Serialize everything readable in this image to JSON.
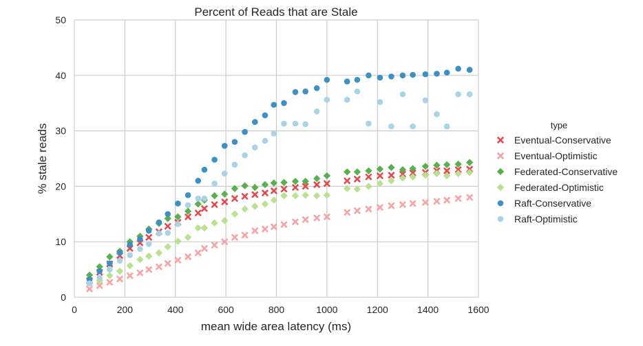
{
  "chart_data": {
    "type": "scatter",
    "title": "Percent of Reads that are Stale",
    "xlabel": "mean wide area latency (ms)",
    "ylabel": "% stale reads",
    "xlim": [
      0,
      1600
    ],
    "ylim": [
      0,
      50
    ],
    "xticks": [
      "0",
      "200",
      "400",
      "600",
      "800",
      "1000",
      "1200",
      "1400",
      "1600"
    ],
    "yticks": [
      "0",
      "10",
      "20",
      "30",
      "40",
      "50"
    ],
    "grid": true,
    "legend_title": "type",
    "legend_position": "right",
    "x": [
      60,
      100,
      140,
      180,
      220,
      260,
      295,
      335,
      370,
      410,
      450,
      490,
      515,
      555,
      595,
      635,
      675,
      715,
      755,
      790,
      830,
      875,
      915,
      960,
      1000,
      1080,
      1120,
      1165,
      1210,
      1255,
      1300,
      1340,
      1390,
      1435,
      1475,
      1520,
      1565
    ],
    "series": [
      {
        "name": "Eventual-Conservative",
        "marker": "x",
        "color": "#e3494e",
        "values": [
          3.0,
          4.5,
          6.0,
          7.5,
          8.8,
          9.8,
          10.8,
          11.8,
          12.8,
          13.5,
          14.5,
          15.2,
          16.0,
          16.7,
          17.2,
          17.8,
          18.2,
          18.5,
          18.8,
          19.2,
          19.5,
          19.8,
          20.0,
          20.3,
          20.5,
          21.0,
          21.3,
          21.7,
          21.9,
          22.0,
          22.2,
          22.4,
          22.5,
          22.8,
          22.8,
          23.0,
          23.1
        ]
      },
      {
        "name": "Eventual-Optimistic",
        "marker": "x",
        "color": "#f8a2a3",
        "values": [
          1.5,
          2.1,
          2.7,
          3.3,
          3.9,
          4.4,
          5.0,
          5.5,
          6.1,
          6.7,
          7.3,
          8.0,
          8.8,
          9.4,
          10.0,
          10.8,
          11.2,
          12.0,
          12.3,
          12.7,
          13.1,
          13.6,
          14.0,
          14.3,
          14.5,
          15.3,
          15.6,
          15.9,
          16.2,
          16.5,
          16.7,
          16.9,
          17.1,
          17.3,
          17.5,
          17.8,
          18.0
        ]
      },
      {
        "name": "Federated-Conservative",
        "marker": "diamond",
        "color": "#5aaf50",
        "values": [
          4.0,
          5.5,
          7.3,
          8.3,
          10.0,
          11.0,
          12.3,
          13.3,
          14.2,
          14.5,
          15.5,
          16.8,
          17.5,
          18.3,
          18.6,
          19.6,
          20.1,
          19.8,
          20.3,
          20.6,
          20.7,
          20.9,
          20.9,
          21.4,
          21.9,
          22.6,
          22.6,
          22.8,
          23.1,
          23.4,
          23.0,
          23.2,
          23.6,
          23.8,
          23.9,
          24.0,
          24.3
        ]
      },
      {
        "name": "Federated-Optimistic",
        "marker": "diamond",
        "color": "#b9e18f",
        "values": [
          2.5,
          3.0,
          3.9,
          4.7,
          5.7,
          6.8,
          7.4,
          8.0,
          9.1,
          10.1,
          10.8,
          12.5,
          12.5,
          13.4,
          13.8,
          15.0,
          15.9,
          16.4,
          16.8,
          17.5,
          18.3,
          18.3,
          18.4,
          18.3,
          18.4,
          19.6,
          19.5,
          20.0,
          20.5,
          21.0,
          21.5,
          21.7,
          22.0,
          22.3,
          21.9,
          22.3,
          22.5
        ]
      },
      {
        "name": "Raft-Conservative",
        "marker": "circle",
        "color": "#3e8fc2",
        "values": [
          3.2,
          4.7,
          6.1,
          8.0,
          9.5,
          10.5,
          12.0,
          13.5,
          15.0,
          16.9,
          18.4,
          21.0,
          23.0,
          24.8,
          27.3,
          28.0,
          29.8,
          31.6,
          32.8,
          34.7,
          35.0,
          37.0,
          37.1,
          37.7,
          39.2,
          38.9,
          39.2,
          40.0,
          39.6,
          39.8,
          40.0,
          40.1,
          40.2,
          40.3,
          40.5,
          41.2,
          41.0
        ]
      },
      {
        "name": "Raft-Optimistic",
        "marker": "circle",
        "color": "#abd3e6",
        "values": [
          2.5,
          3.5,
          5.0,
          6.6,
          7.6,
          8.7,
          9.6,
          11.5,
          11.6,
          13.2,
          16.6,
          17.8,
          17.8,
          20.5,
          22.3,
          23.9,
          25.6,
          27.0,
          28.2,
          29.5,
          31.3,
          31.3,
          31.2,
          33.5,
          35.6,
          35.6,
          37.1,
          31.3,
          35.2,
          30.8,
          36.6,
          30.8,
          35.5,
          33.0,
          30.8,
          36.6,
          36.6
        ]
      }
    ]
  }
}
